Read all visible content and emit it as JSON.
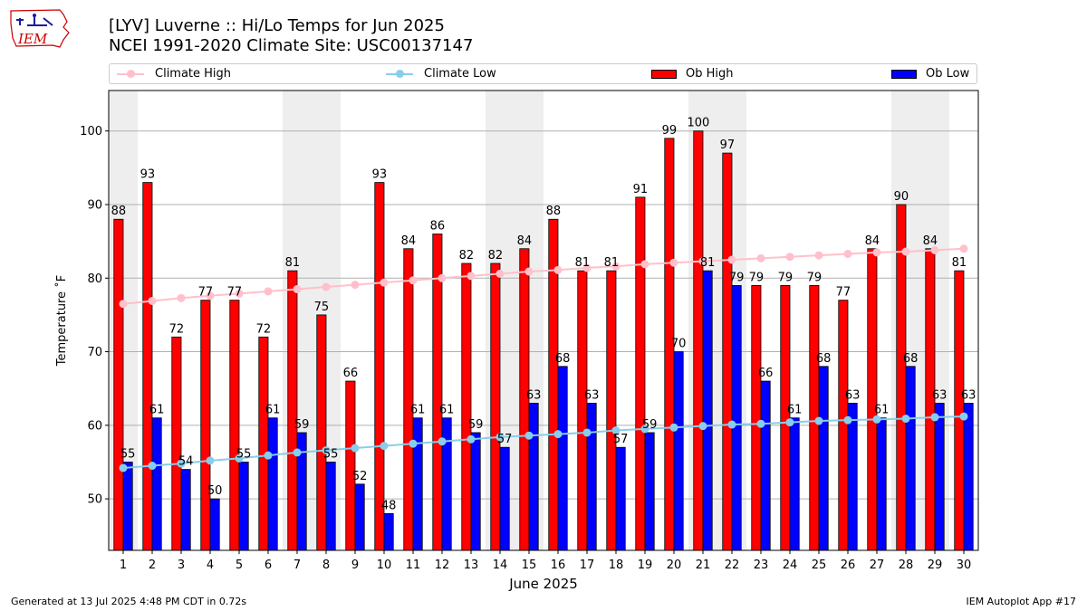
{
  "header": {
    "title_line1": "[LYV] Luverne :: Hi/Lo Temps for Jun 2025",
    "title_line2": "NCEI 1991-2020 Climate Site: USC00137147",
    "logo_text": "IEM"
  },
  "legend": {
    "climate_high": "Climate High",
    "climate_low": "Climate Low",
    "ob_high": "Ob High",
    "ob_low": "Ob Low"
  },
  "colors": {
    "ob_high": "#ff0000",
    "ob_low": "#0000ff",
    "climate_high": "#ffc0cb",
    "climate_low": "#87ceeb",
    "weekend_shade": "#eeeeee",
    "grid": "#b0b0b0"
  },
  "footer": {
    "left": "Generated at 13 Jul 2025 4:48 PM CDT in 0.72s",
    "right": "IEM Autoplot App #17"
  },
  "chart_data": {
    "type": "bar",
    "xlabel": "June 2025",
    "ylabel": "Temperature ˚F",
    "ylim": [
      43,
      105.5
    ],
    "yticks": [
      50,
      60,
      70,
      80,
      90,
      100
    ],
    "grid": "horizontal",
    "legend_position": "top",
    "categories": [
      1,
      2,
      3,
      4,
      5,
      6,
      7,
      8,
      9,
      10,
      11,
      12,
      13,
      14,
      15,
      16,
      17,
      18,
      19,
      20,
      21,
      22,
      23,
      24,
      25,
      26,
      27,
      28,
      29,
      30
    ],
    "shaded_days": [
      1,
      7,
      8,
      14,
      15,
      21,
      22,
      28,
      29
    ],
    "series": [
      {
        "name": "Ob High",
        "kind": "bar",
        "values": [
          88,
          93,
          72,
          77,
          77,
          72,
          81,
          75,
          66,
          93,
          84,
          86,
          82,
          82,
          84,
          88,
          81,
          81,
          91,
          99,
          100,
          97,
          79,
          79,
          79,
          77,
          84,
          90,
          84,
          81
        ]
      },
      {
        "name": "Ob Low",
        "kind": "bar",
        "values": [
          55,
          61,
          54,
          50,
          55,
          61,
          59,
          55,
          52,
          48,
          61,
          61,
          59,
          57,
          63,
          68,
          63,
          57,
          59,
          70,
          81,
          79,
          66,
          61,
          68,
          63,
          61,
          68,
          63,
          63
        ]
      },
      {
        "name": "Climate High",
        "kind": "line",
        "values": [
          76.5,
          76.9,
          77.3,
          77.6,
          77.9,
          78.2,
          78.5,
          78.8,
          79.1,
          79.4,
          79.7,
          80.0,
          80.3,
          80.6,
          80.9,
          81.1,
          81.4,
          81.6,
          81.9,
          82.1,
          82.3,
          82.5,
          82.7,
          82.9,
          83.1,
          83.3,
          83.5,
          83.6,
          83.8,
          84.0
        ]
      },
      {
        "name": "Climate Low",
        "kind": "line",
        "values": [
          54.2,
          54.5,
          54.8,
          55.2,
          55.5,
          55.9,
          56.3,
          56.6,
          56.9,
          57.2,
          57.5,
          57.8,
          58.1,
          58.4,
          58.6,
          58.8,
          59.0,
          59.3,
          59.5,
          59.7,
          59.9,
          60.1,
          60.2,
          60.4,
          60.6,
          60.7,
          60.8,
          60.9,
          61.1,
          61.2
        ]
      }
    ]
  }
}
